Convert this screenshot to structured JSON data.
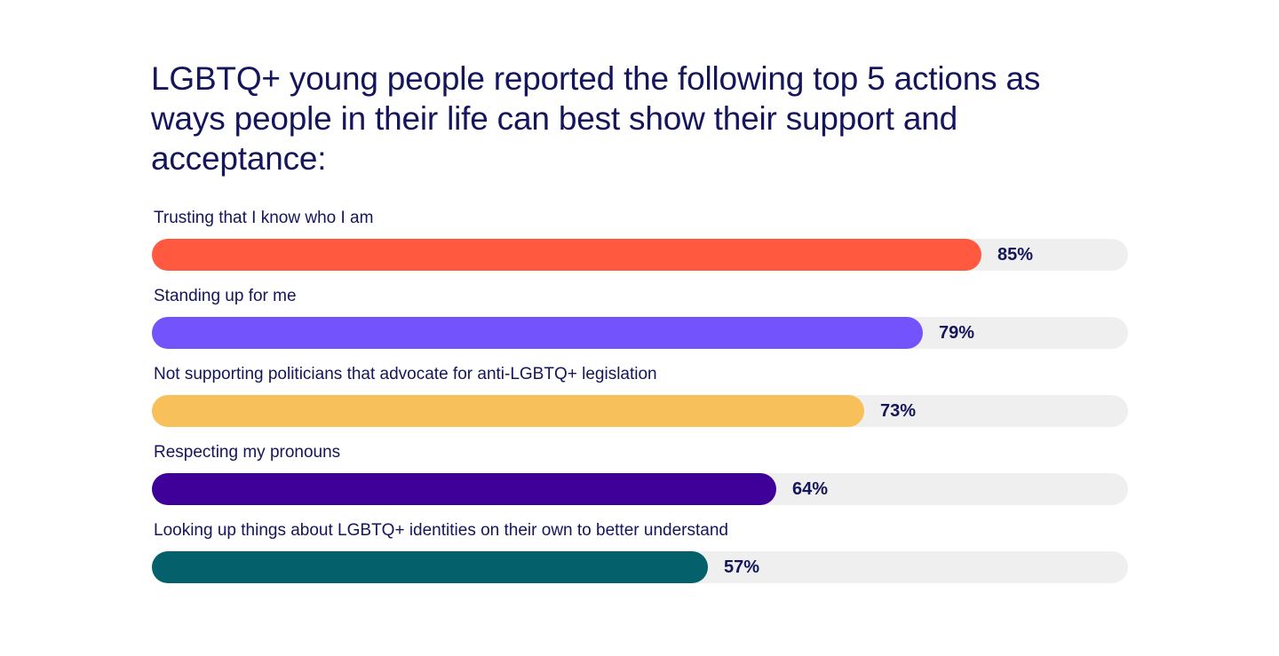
{
  "chart_data": {
    "type": "bar",
    "orientation": "horizontal",
    "title": "LGBTQ+ young people reported the following top 5 actions as ways people in their life can best show their support and acceptance:",
    "categories": [
      "Trusting that I know who I am",
      "Standing up for me",
      "Not supporting politicians that advocate for anti-LGBTQ+ legislation",
      "Respecting my pronouns",
      "Looking up things about LGBTQ+ identities on their own to better understand"
    ],
    "values": [
      85,
      79,
      73,
      64,
      57
    ],
    "value_labels": [
      "85%",
      "79%",
      "73%",
      "64%",
      "57%"
    ],
    "colors": [
      "#ff5a40",
      "#7354fc",
      "#f8c05a",
      "#3f0099",
      "#04606a"
    ],
    "track_color": "#efefef",
    "xlim": [
      0,
      100
    ],
    "grid": false,
    "legend": "none"
  }
}
